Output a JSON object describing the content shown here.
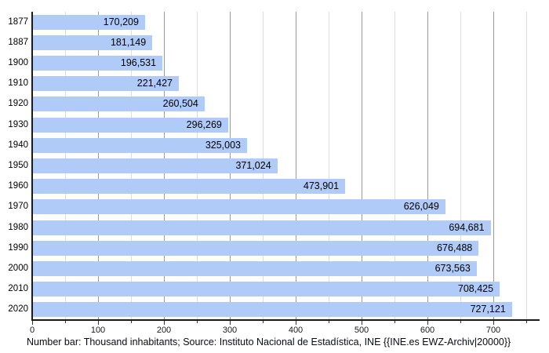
{
  "chart_data": {
    "type": "bar",
    "orientation": "horizontal",
    "title": "",
    "xlabel": "",
    "ylabel": "",
    "categories": [
      "1877",
      "1887",
      "1900",
      "1910",
      "1920",
      "1930",
      "1940",
      "1950",
      "1960",
      "1970",
      "1980",
      "1990",
      "2000",
      "2010",
      "2020"
    ],
    "values": [
      170209,
      181149,
      196531,
      221427,
      260504,
      296269,
      325003,
      371024,
      473901,
      626049,
      694681,
      676488,
      673563,
      708425,
      727121
    ],
    "value_labels": [
      "170,209",
      "181,149",
      "196,531",
      "221,427",
      "260,504",
      "296,269",
      "325,003",
      "371,024",
      "473,901",
      "626,049",
      "694,681",
      "676,488",
      "673,563",
      "708,425",
      "727,121"
    ],
    "x_axis": {
      "unit": "thousand inhabitants",
      "tick_labels": [
        "0",
        "100",
        "200",
        "300",
        "400",
        "500",
        "600",
        "700"
      ],
      "major_step_thousands": 100,
      "minor_step_thousands": 50,
      "last_minor_gridline_thousands": 750,
      "range_min": 0,
      "range_max": 770
    },
    "legend_position": "none",
    "grid": "vertical, minor every 50 (light), major every 100 (darker)",
    "caption": "Number bar: Thousand inhabitants; Source: Instituto Nacional de Estadística, INE {{INE.es EWZ-Archiv|20000}}",
    "colors": {
      "bar_fill": "#b0cbf8",
      "major_gridline": "#9a9a9a",
      "minor_gridline": "#dcdcdc",
      "axis_line": "#1a1a1a",
      "label_text": "#000000",
      "background": "#ffffff"
    }
  }
}
